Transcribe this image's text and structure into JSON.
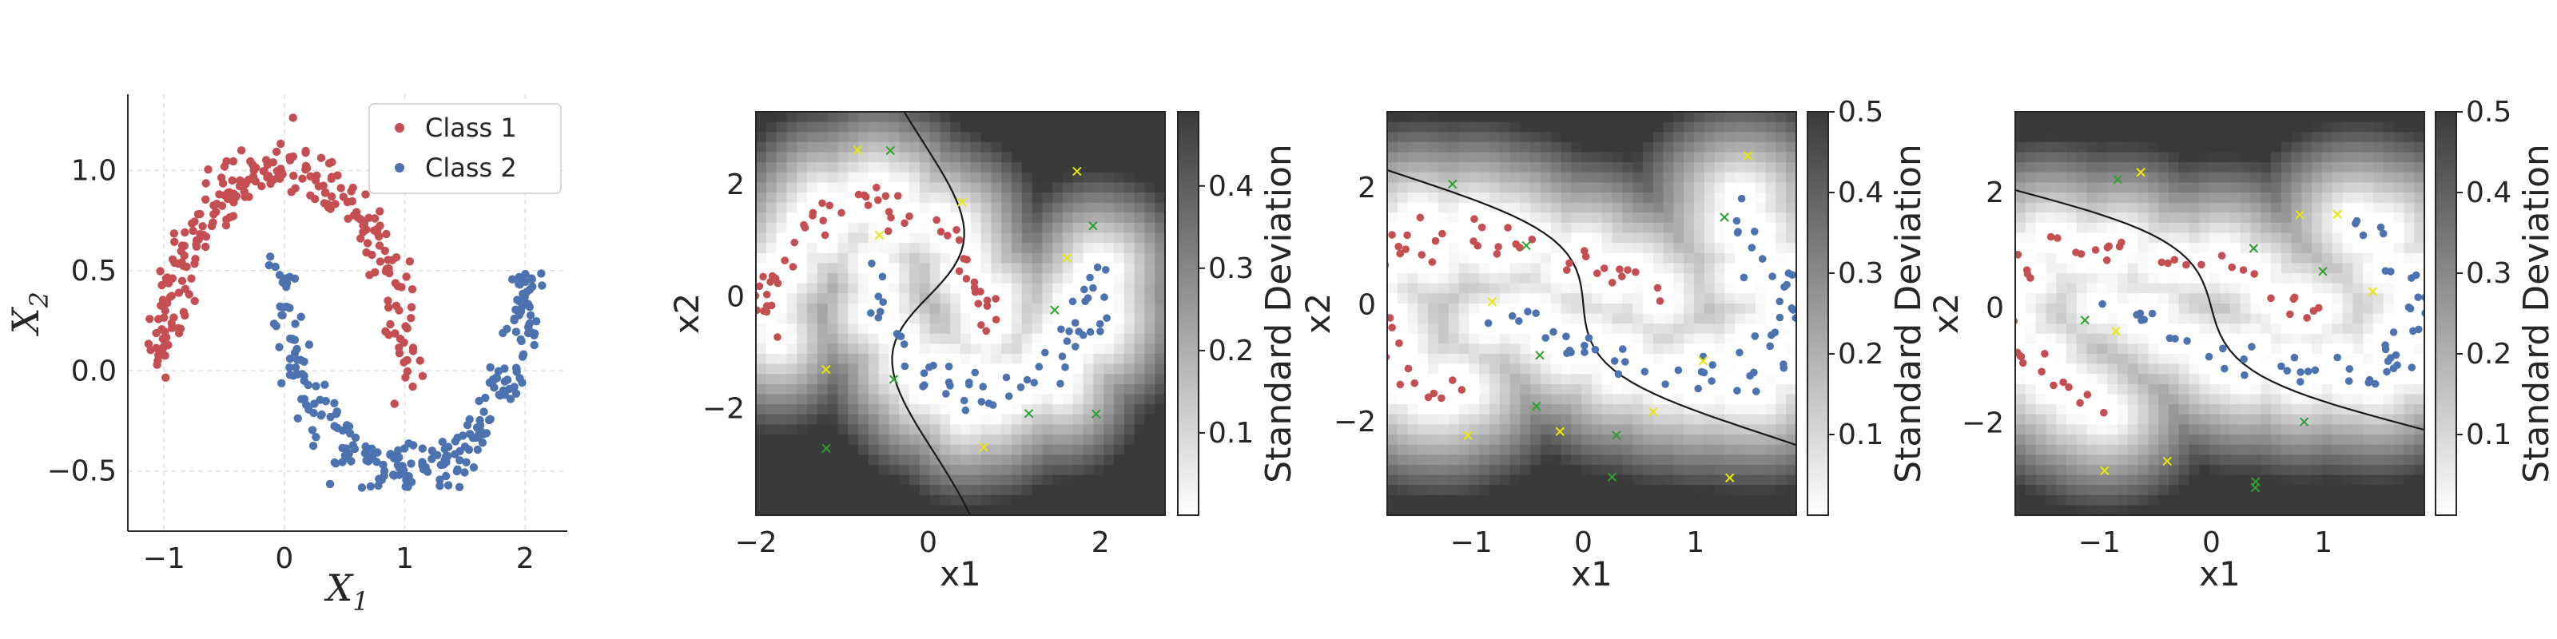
{
  "chart_data": [
    {
      "type": "scatter",
      "title": "",
      "xlabel": "X",
      "xlabel_sub": "1",
      "ylabel": "X",
      "ylabel_sub": "2",
      "xlim": [
        -1.3,
        2.35
      ],
      "ylim": [
        -0.8,
        1.38
      ],
      "xticks": [
        -1,
        0,
        1,
        2
      ],
      "yticks": [
        -0.5,
        0.0,
        0.5,
        1.0
      ],
      "ytick_labels": [
        "−0.5",
        "0.0",
        "0.5",
        "1.0"
      ],
      "xtick_labels": [
        "−1",
        "0",
        "1",
        "2"
      ],
      "grid": true,
      "legend_position": "top-right",
      "series": [
        {
          "name": "Class 1",
          "color": "#c44e52",
          "shape": "upper-moon",
          "center_x": 0,
          "center_y": 0,
          "radius": 1,
          "count": 250
        },
        {
          "name": "Class 2",
          "color": "#4c72b0",
          "shape": "lower-moon",
          "center_x": 1,
          "center_y": 0.5,
          "radius": 1,
          "count": 250
        }
      ]
    },
    {
      "type": "heatmap",
      "title": "",
      "xlabel": "x1",
      "ylabel": "x2",
      "xlim": [
        -2.0,
        2.75
      ],
      "ylim": [
        -3.9,
        3.3
      ],
      "xticks": [
        -2,
        0,
        2
      ],
      "yticks": [
        -2,
        0,
        2
      ],
      "xtick_labels": [
        "−2",
        "0",
        "2"
      ],
      "ytick_labels": [
        "−2",
        "0",
        "2"
      ],
      "colorbar_label": "Standard Deviation",
      "colorbar_ticks": [
        0.1,
        0.2,
        0.3,
        0.4
      ],
      "colorbar_tick_labels": [
        "0.1",
        "0.2",
        "0.3",
        "0.4"
      ],
      "colorbar_range": [
        0.0,
        0.49
      ],
      "rotation_deg": 0,
      "marker_colors": {
        "class1": "#c44e52",
        "class2": "#4c72b0",
        "x_green": "#2ca02c",
        "x_yellow": "#e8e800"
      }
    },
    {
      "type": "heatmap",
      "title": "",
      "xlabel": "x1",
      "ylabel": "x2",
      "xlim": [
        -1.75,
        1.9
      ],
      "ylim": [
        -3.6,
        3.3
      ],
      "xticks": [
        -1,
        0,
        1
      ],
      "yticks": [
        -2,
        0,
        2
      ],
      "xtick_labels": [
        "−1",
        "0",
        "1"
      ],
      "ytick_labels": [
        "−2",
        "0",
        "2"
      ],
      "colorbar_label": "Standard Deviation",
      "colorbar_ticks": [
        0.1,
        0.2,
        0.3,
        0.4,
        0.5
      ],
      "colorbar_tick_labels": [
        "0.1",
        "0.2",
        "0.3",
        "0.4",
        "0.5"
      ],
      "colorbar_range": [
        0.0,
        0.5
      ],
      "rotation_deg": 35
    },
    {
      "type": "heatmap",
      "title": "",
      "xlabel": "x1",
      "ylabel": "x2",
      "xlim": [
        -1.75,
        1.9
      ],
      "ylim": [
        -3.6,
        3.4
      ],
      "xticks": [
        -1,
        0,
        1
      ],
      "yticks": [
        -2,
        0,
        2
      ],
      "xtick_labels": [
        "−1",
        "0",
        "1"
      ],
      "ytick_labels": [
        "−2",
        "0",
        "2"
      ],
      "colorbar_label": "Standard Deviation",
      "colorbar_ticks": [
        0.1,
        0.2,
        0.3,
        0.4,
        0.5
      ],
      "colorbar_tick_labels": [
        "0.1",
        "0.2",
        "0.3",
        "0.4",
        "0.5"
      ],
      "colorbar_range": [
        0.0,
        0.5
      ],
      "rotation_deg": 40
    }
  ]
}
